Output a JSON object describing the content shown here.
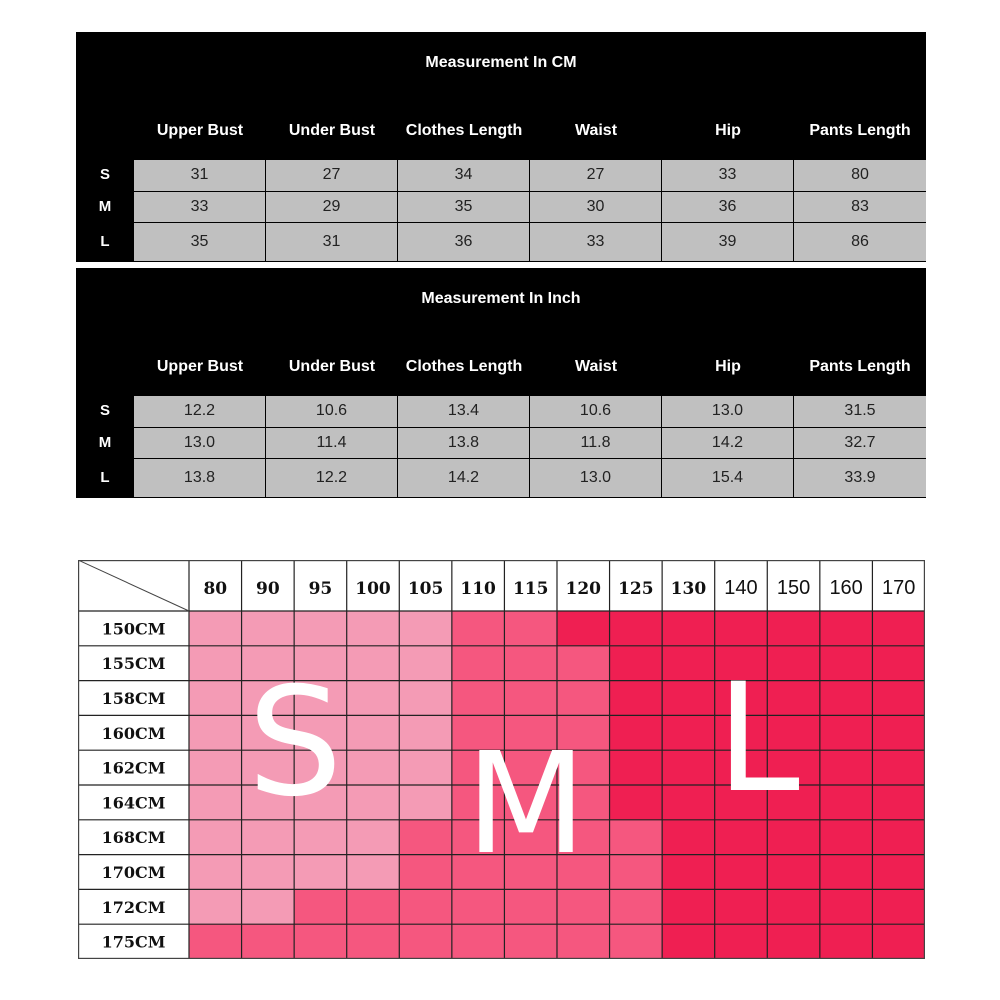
{
  "cm_table": {
    "title": "Measurement In CM",
    "headers": [
      "Upper Bust",
      "Under Bust",
      "Clothes Length",
      "Waist",
      "Hip",
      "Pants Length"
    ],
    "rows": [
      {
        "size": "S",
        "values": [
          "31",
          "27",
          "34",
          "27",
          "33",
          "80"
        ]
      },
      {
        "size": "M",
        "values": [
          "33",
          "29",
          "35",
          "30",
          "36",
          "83"
        ]
      },
      {
        "size": "L",
        "values": [
          "35",
          "31",
          "36",
          "33",
          "39",
          "86"
        ]
      }
    ]
  },
  "inch_table": {
    "title": "Measurement In Inch",
    "headers": [
      "Upper Bust",
      "Under Bust",
      "Clothes Length",
      "Waist",
      "Hip",
      "Pants Length"
    ],
    "rows": [
      {
        "size": "S",
        "values": [
          "12.2",
          "10.6",
          "13.4",
          "10.6",
          "13.0",
          "31.5"
        ]
      },
      {
        "size": "M",
        "values": [
          "13.0",
          "11.4",
          "13.8",
          "11.8",
          "14.2",
          "32.7"
        ]
      },
      {
        "size": "L",
        "values": [
          "13.8",
          "12.2",
          "14.2",
          "13.0",
          "15.4",
          "33.9"
        ]
      }
    ]
  },
  "size_chart": {
    "weights": [
      "80",
      "90",
      "95",
      "100",
      "105",
      "110",
      "115",
      "120",
      "125",
      "130",
      "140",
      "150",
      "160",
      "170"
    ],
    "heights": [
      "150CM",
      "155CM",
      "158CM",
      "160CM",
      "162CM",
      "164CM",
      "168CM",
      "170CM",
      "172CM",
      "175CM"
    ],
    "size_labels": [
      "S",
      "M",
      "L"
    ],
    "colors": {
      "S": "#f49bb5",
      "M": "#f5577f",
      "L": "#ef1f52"
    },
    "matrix": [
      [
        "S",
        "S",
        "S",
        "S",
        "S",
        "M",
        "M",
        "L",
        "L",
        "L",
        "L",
        "L",
        "L",
        "L"
      ],
      [
        "S",
        "S",
        "S",
        "S",
        "S",
        "M",
        "M",
        "M",
        "L",
        "L",
        "L",
        "L",
        "L",
        "L"
      ],
      [
        "S",
        "S",
        "S",
        "S",
        "S",
        "M",
        "M",
        "M",
        "L",
        "L",
        "L",
        "L",
        "L",
        "L"
      ],
      [
        "S",
        "S",
        "S",
        "S",
        "S",
        "M",
        "M",
        "M",
        "L",
        "L",
        "L",
        "L",
        "L",
        "L"
      ],
      [
        "S",
        "S",
        "S",
        "S",
        "S",
        "M",
        "M",
        "M",
        "L",
        "L",
        "L",
        "L",
        "L",
        "L"
      ],
      [
        "S",
        "S",
        "S",
        "S",
        "S",
        "M",
        "M",
        "M",
        "L",
        "L",
        "L",
        "L",
        "L",
        "L"
      ],
      [
        "S",
        "S",
        "S",
        "S",
        "M",
        "M",
        "M",
        "M",
        "M",
        "L",
        "L",
        "L",
        "L",
        "L"
      ],
      [
        "S",
        "S",
        "S",
        "S",
        "M",
        "M",
        "M",
        "M",
        "M",
        "L",
        "L",
        "L",
        "L",
        "L"
      ],
      [
        "S",
        "S",
        "M",
        "M",
        "M",
        "M",
        "M",
        "M",
        "M",
        "L",
        "L",
        "L",
        "L",
        "L"
      ],
      [
        "M",
        "M",
        "M",
        "M",
        "M",
        "M",
        "M",
        "M",
        "M",
        "L",
        "L",
        "L",
        "L",
        "L"
      ]
    ]
  }
}
